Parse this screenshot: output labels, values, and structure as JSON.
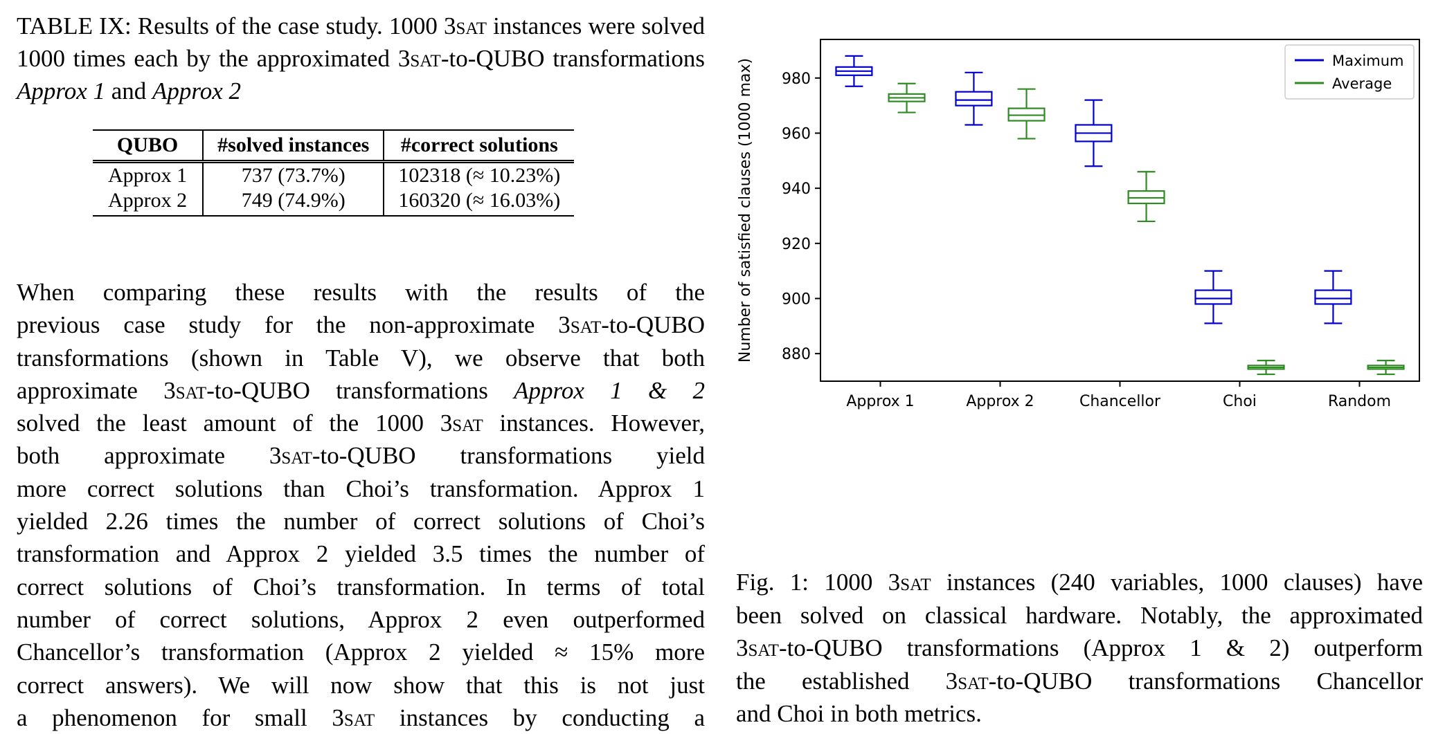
{
  "table": {
    "caption_prefix": "TABLE IX: Results of the case study. 1000 3",
    "caption_sc1": "sat",
    "caption_mid1": " instances were solved 1000 times each by the approximated 3",
    "caption_sc2": "sat",
    "caption_mid2": "-to-QUBO transformations ",
    "caption_em1": "Approx 1",
    "caption_and": " and ",
    "caption_em2": "Approx 2",
    "headers": [
      "QUBO",
      "#solved instances",
      "#correct solutions"
    ],
    "rows": [
      [
        "Approx 1",
        "737 (73.7%)",
        "102318 (≈ 10.23%)"
      ],
      [
        "Approx 2",
        "749 (74.9%)",
        "160320 (≈ 16.03%)"
      ]
    ]
  },
  "paragraph_lines": [
    "When comparing these results with the results of the",
    "previous case study for the non-approximate 3SAT-to-QUBO",
    "transformations (shown in Table V), we observe that both",
    "approximate 3SAT-to-QUBO transformations Approx 1 & 2",
    "solved the least amount of the 1000 3SAT instances. However,",
    "both approximate 3SAT-to-QUBO transformations yield",
    "more correct solutions than Choi’s transformation. Approx 1",
    "yielded 2.26 times the number of correct solutions of Choi’s",
    "transformation and Approx 2 yielded 3.5 times the number of",
    "correct solutions of Choi’s transformation. In terms of total",
    "number of correct solutions, Approx 2 even outperformed",
    "Chancellor’s transformation (Approx 2 yielded ≈ 15% more",
    "correct answers). We will now show that this is not just",
    "a phenomenon for small 3SAT instances by conducting a"
  ],
  "figure_caption_lines": [
    "Fig. 1: 1000 3SAT instances (240 variables, 1000 clauses) have",
    "been solved on classical hardware. Notably, the approximated",
    "3SAT-to-QUBO transformations (Approx 1 & 2) outperform",
    "the established 3SAT-to-QUBO transformations Chancellor",
    "and Choi in both metrics."
  ],
  "chart_data": {
    "type": "boxplot",
    "ylabel": "Number of satisfied clauses (1000 max)",
    "ylim": [
      870,
      994
    ],
    "yticks": [
      880,
      900,
      920,
      940,
      960,
      980
    ],
    "categories": [
      "Approx 1",
      "Approx 2",
      "Chancellor",
      "Choi",
      "Random"
    ],
    "legend_position": "top-right",
    "series": [
      {
        "name": "Maximum",
        "color": "#0000cc",
        "boxes": [
          {
            "whislo": 977,
            "q1": 981,
            "med": 982.5,
            "q3": 984,
            "whishi": 988
          },
          {
            "whislo": 963,
            "q1": 970,
            "med": 972,
            "q3": 975,
            "whishi": 982
          },
          {
            "whislo": 948,
            "q1": 957,
            "med": 960,
            "q3": 963,
            "whishi": 972
          },
          {
            "whislo": 891,
            "q1": 898,
            "med": 900,
            "q3": 903,
            "whishi": 910
          },
          {
            "whislo": 891,
            "q1": 898,
            "med": 900,
            "q3": 903,
            "whishi": 910
          }
        ]
      },
      {
        "name": "Average",
        "color": "#2e8b22",
        "boxes": [
          {
            "whislo": 967.5,
            "q1": 971.5,
            "med": 972.8,
            "q3": 974.2,
            "whishi": 978
          },
          {
            "whislo": 958,
            "q1": 964.5,
            "med": 966.5,
            "q3": 969,
            "whishi": 976
          },
          {
            "whislo": 928,
            "q1": 934.5,
            "med": 936.5,
            "q3": 939,
            "whishi": 946
          },
          {
            "whislo": 872.5,
            "q1": 874.4,
            "med": 875,
            "q3": 875.7,
            "whishi": 877.5
          },
          {
            "whislo": 872.5,
            "q1": 874.4,
            "med": 875,
            "q3": 875.7,
            "whishi": 877.5
          }
        ]
      }
    ]
  }
}
